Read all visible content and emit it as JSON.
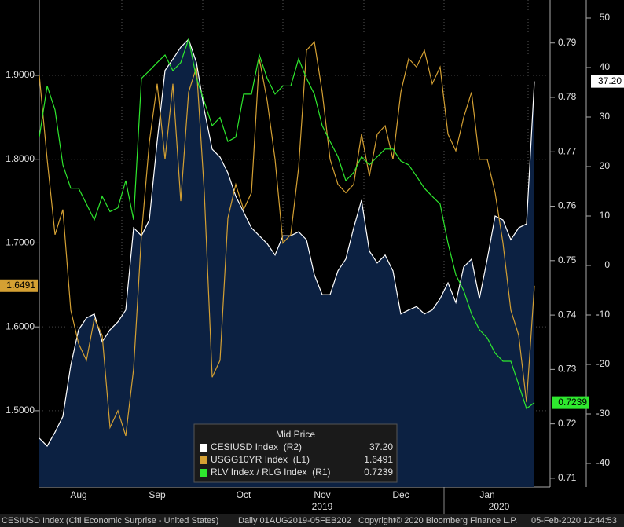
{
  "chart_data": {
    "type": "line",
    "categories": [
      null,
      null,
      null,
      null,
      null,
      "Aug",
      null,
      null,
      null,
      null,
      null,
      null,
      null,
      null,
      null,
      "Sep",
      null,
      null,
      null,
      null,
      null,
      null,
      null,
      null,
      null,
      null,
      "Oct",
      null,
      null,
      null,
      null,
      null,
      null,
      null,
      null,
      null,
      "Nov",
      null,
      null,
      null,
      null,
      null,
      null,
      null,
      null,
      null,
      "Dec",
      null,
      null,
      null,
      null,
      null,
      null,
      null,
      null,
      null,
      null,
      "Jan",
      null,
      null,
      null,
      null,
      null,
      null
    ],
    "year_labels": [
      "2019",
      "2020"
    ],
    "ylim": [
      1.409,
      1.99
    ],
    "yticks": [
      {
        "value": 1.5,
        "label": "1.5000"
      },
      {
        "value": 1.6,
        "label": "1.6000"
      },
      {
        "value": 1.7,
        "label": "1.7000"
      },
      {
        "value": 1.8,
        "label": "1.8000"
      },
      {
        "value": 1.9,
        "label": "1.9000"
      }
    ],
    "y2lim": [
      0.7084,
      0.7979
    ],
    "y2ticks": [
      0.71,
      0.72,
      0.73,
      0.74,
      0.75,
      0.76,
      0.77,
      0.78,
      0.79
    ],
    "y3lim": [
      -44.76,
      53.65
    ],
    "y3ticks": [
      -40,
      -30,
      -20,
      -10,
      0,
      10,
      20,
      30,
      40,
      50
    ],
    "grid": true,
    "legend_title": "Mid Price",
    "series": [
      {
        "name": "CESIUSD Index  (R2)",
        "axis": "y3",
        "color": "#ffffff",
        "area": true,
        "area_color": "#0c2142",
        "values": [
          -34.9,
          -36.5,
          -33.7,
          -30.5,
          -20.2,
          -13,
          -10.6,
          -9.8,
          -15.4,
          -13,
          -11.4,
          -9,
          7.6,
          6,
          9.2,
          25.1,
          39.4,
          41.7,
          44.1,
          45.7,
          41,
          31.4,
          23.5,
          21.9,
          18.7,
          14,
          10.8,
          7.6,
          6,
          4.4,
          2.1,
          6,
          6,
          6.8,
          5.2,
          -1.9,
          -5.9,
          -5.9,
          -1.1,
          1.3,
          7.6,
          13.2,
          2.9,
          0.5,
          2.1,
          -1.1,
          -9.8,
          -9,
          -8.3,
          -9.8,
          -9,
          -6.7,
          -3.5,
          -7.5,
          -0.3,
          1.3,
          -6.7,
          1.3,
          10,
          9.2,
          5.2,
          7.6,
          8.4,
          37.2
        ],
        "value_labels": [
          null,
          null,
          null,
          null,
          null,
          null,
          null,
          null,
          null,
          null,
          null,
          null,
          null,
          null,
          null,
          null,
          null,
          null,
          null,
          null,
          null,
          null,
          null,
          null,
          null,
          null,
          null,
          null,
          null,
          null,
          null,
          null,
          null,
          null,
          null,
          null,
          null,
          null,
          null,
          null,
          null,
          null,
          null,
          null,
          null,
          null,
          null,
          null,
          null,
          null,
          null,
          null,
          null,
          null,
          null,
          null,
          null,
          null,
          null,
          null,
          null,
          null,
          null,
          "37.20"
        ]
      },
      {
        "name": "USGG10YR Index  (L1)",
        "axis": "y",
        "color": "#d4a033",
        "values": [
          1.9,
          1.8,
          1.71,
          1.74,
          1.62,
          1.58,
          1.56,
          1.61,
          1.59,
          1.48,
          1.5,
          1.47,
          1.55,
          1.71,
          1.82,
          1.89,
          1.8,
          1.89,
          1.75,
          1.88,
          1.91,
          1.76,
          1.54,
          1.56,
          1.73,
          1.77,
          1.74,
          1.76,
          1.92,
          1.87,
          1.8,
          1.7,
          1.71,
          1.79,
          1.93,
          1.94,
          1.88,
          1.8,
          1.77,
          1.76,
          1.77,
          1.83,
          1.78,
          1.83,
          1.84,
          1.8,
          1.88,
          1.92,
          1.91,
          1.93,
          1.89,
          1.91,
          1.83,
          1.81,
          1.85,
          1.88,
          1.8,
          1.8,
          1.76,
          1.7,
          1.62,
          1.59,
          1.51,
          1.6491
        ]
      },
      {
        "name": "RLV Index / RLG Index  (R1)",
        "axis": "y2",
        "color": "#2ee82e",
        "values": [
          0.7727,
          0.7821,
          0.7777,
          0.7676,
          0.7633,
          0.7633,
          0.7604,
          0.7575,
          0.7618,
          0.759,
          0.7597,
          0.7647,
          0.7575,
          0.7835,
          0.7849,
          0.7864,
          0.7878,
          0.7849,
          0.7864,
          0.7907,
          0.7835,
          0.7792,
          0.7748,
          0.7763,
          0.7719,
          0.7727,
          0.7806,
          0.7806,
          0.7878,
          0.7835,
          0.7806,
          0.7821,
          0.7821,
          0.7871,
          0.7835,
          0.7806,
          0.7748,
          0.7719,
          0.7691,
          0.7647,
          0.7662,
          0.7691,
          0.7676,
          0.7691,
          0.7705,
          0.7705,
          0.7683,
          0.7676,
          0.7655,
          0.7633,
          0.7618,
          0.7604,
          0.7532,
          0.7474,
          0.7445,
          0.7402,
          0.7373,
          0.7358,
          0.733,
          0.7315,
          0.7315,
          0.7272,
          0.7228,
          0.7239
        ]
      }
    ],
    "footer": [
      "CESIUSD Index (Citi Economic Surprise - United States)",
      "Daily 01AUG2019-05FEB202",
      "Copyright© 2020 Bloomberg Finance L.P.",
      "05-Feb-2020 12:44:53"
    ]
  }
}
